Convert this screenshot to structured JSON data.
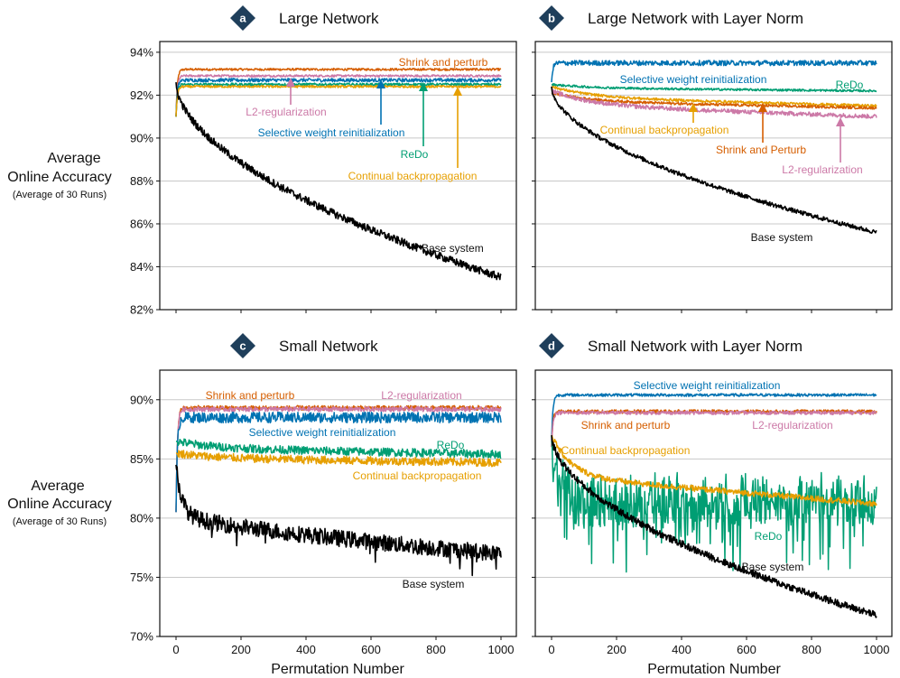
{
  "figure": {
    "ylabel_line1": "Average",
    "ylabel_line2": "Online Accuracy",
    "ylabel_line3": "(Average of 30 Runs)",
    "xlabel": "Permutation Number"
  },
  "colors": {
    "base": "#000000",
    "shrink": "#d55e00",
    "l2": "#cc79a7",
    "selective": "#0072b2",
    "redo": "#009e73",
    "cbp": "#e69f00",
    "badge": "#1f3f5b"
  },
  "chart_data": [
    {
      "id": "a",
      "badge": "a",
      "title": "Large Network",
      "type": "line",
      "xlim": [
        0,
        1000
      ],
      "ylim": [
        82,
        94.5
      ],
      "yticks": [
        82,
        84,
        86,
        88,
        90,
        92,
        94
      ],
      "ytick_labels": [
        "82%",
        "84%",
        "86%",
        "88%",
        "90%",
        "92%",
        "94%"
      ],
      "xticks": [
        0,
        200,
        400,
        600,
        800,
        1000
      ],
      "xtick_labels": [],
      "series": [
        {
          "name": "Shrink and perturb",
          "key": "shrink",
          "start": 91.0,
          "end": 93.2,
          "kind": "rise",
          "noise": 0.05
        },
        {
          "name": "L2-regularization",
          "key": "l2",
          "start": 91.0,
          "end": 92.9,
          "kind": "rise",
          "noise": 0.05
        },
        {
          "name": "Selective weight reinitialization",
          "key": "selective",
          "start": 91.0,
          "end": 92.7,
          "kind": "rise",
          "noise": 0.08
        },
        {
          "name": "ReDo",
          "key": "redo",
          "start": 91.0,
          "end": 92.5,
          "kind": "rise",
          "noise": 0.06
        },
        {
          "name": "Continual backpropagation",
          "key": "cbp",
          "start": 91.0,
          "end": 92.4,
          "kind": "rise",
          "noise": 0.05
        },
        {
          "name": "Base system",
          "key": "base",
          "start": 92.6,
          "end": 83.5,
          "kind": "decay",
          "noise": 0.18
        }
      ],
      "labels": {
        "shrink": "Shrink and perturb",
        "l2": "L2-regularization",
        "selective": "Selective weight reinitialization",
        "redo": "ReDo",
        "cbp": "Continual backpropagation",
        "base": "Base system"
      }
    },
    {
      "id": "b",
      "badge": "b",
      "title": "Large Network with Layer Norm",
      "type": "line",
      "xlim": [
        0,
        1000
      ],
      "ylim": [
        82,
        94.5
      ],
      "yticks": [
        82,
        84,
        86,
        88,
        90,
        92,
        94
      ],
      "ytick_labels": [],
      "xticks": [
        0,
        200,
        400,
        600,
        800,
        1000
      ],
      "xtick_labels": [],
      "series": [
        {
          "name": "Selective weight reinitialization",
          "key": "selective",
          "start": 92.6,
          "end": 93.5,
          "kind": "rise",
          "noise": 0.12
        },
        {
          "name": "ReDo",
          "key": "redo",
          "start": 92.5,
          "end": 92.2,
          "kind": "drift",
          "noise": 0.05
        },
        {
          "name": "Continual backpropagation",
          "key": "cbp",
          "start": 92.4,
          "end": 91.5,
          "kind": "drift",
          "noise": 0.06
        },
        {
          "name": "Shrink and Perturb",
          "key": "shrink",
          "start": 92.1,
          "end": 91.4,
          "kind": "drift",
          "noise": 0.06
        },
        {
          "name": "L2-regularization",
          "key": "l2",
          "start": 92.2,
          "end": 91.0,
          "kind": "drift",
          "noise": 0.1
        },
        {
          "name": "Base system",
          "key": "base",
          "start": 92.4,
          "end": 85.6,
          "kind": "decay",
          "noise": 0.1
        }
      ],
      "labels": {
        "selective": "Selective weight reinitialization",
        "redo": "ReDo",
        "cbp": "Continual backpropagation",
        "shrink": "Shrink and Perturb",
        "l2": "L2-regularization",
        "base": "Base system"
      }
    },
    {
      "id": "c",
      "badge": "c",
      "title": "Small Network",
      "type": "line",
      "xlim": [
        0,
        1000
      ],
      "ylim": [
        70,
        92.5
      ],
      "yticks": [
        70,
        75,
        80,
        85,
        90
      ],
      "ytick_labels": [
        "70%",
        "75%",
        "80%",
        "85%",
        "90%"
      ],
      "xticks": [
        0,
        200,
        400,
        600,
        800,
        1000
      ],
      "xtick_labels": [
        "0",
        "200",
        "400",
        "600",
        "800",
        "1000"
      ],
      "series": [
        {
          "name": "Shrink and perturb",
          "key": "shrink",
          "start": 80.5,
          "end": 89.3,
          "kind": "rise",
          "noise": 0.2
        },
        {
          "name": "L2-regularization",
          "key": "l2",
          "start": 80.5,
          "end": 89.2,
          "kind": "rise",
          "noise": 0.2
        },
        {
          "name": "Selective weight reinitialization",
          "key": "selective",
          "start": 80.5,
          "end": 88.5,
          "kind": "rise",
          "noise": 0.45
        },
        {
          "name": "ReDo",
          "key": "redo",
          "start": 86.5,
          "end": 85.4,
          "kind": "drift",
          "noise": 0.35
        },
        {
          "name": "Continual backpropagation",
          "key": "cbp",
          "start": 85.5,
          "end": 84.7,
          "kind": "drift",
          "noise": 0.35
        },
        {
          "name": "Base system",
          "key": "base",
          "start": 84.5,
          "end": 77.0,
          "kind": "smalldecay",
          "noise": 0.7
        }
      ],
      "labels": {
        "shrink": "Shrink and perturb",
        "l2": "L2-regularization",
        "selective": "Selective weight reinitialization",
        "redo": "ReDo",
        "cbp": "Continual backpropagation",
        "base": "Base system"
      }
    },
    {
      "id": "d",
      "badge": "d",
      "title": "Small Network with Layer Norm",
      "type": "line",
      "xlim": [
        0,
        1000
      ],
      "ylim": [
        70,
        92.5
      ],
      "yticks": [
        70,
        75,
        80,
        85,
        90
      ],
      "ytick_labels": [],
      "xticks": [
        0,
        200,
        400,
        600,
        800,
        1000
      ],
      "xtick_labels": [
        "0",
        "200",
        "400",
        "600",
        "800",
        "1000"
      ],
      "series": [
        {
          "name": "Selective weight reinitialization",
          "key": "selective",
          "start": 86.5,
          "end": 90.4,
          "kind": "rise",
          "noise": 0.12
        },
        {
          "name": "Shrink and perturb",
          "key": "shrink",
          "start": 86.0,
          "end": 89.0,
          "kind": "rise",
          "noise": 0.15
        },
        {
          "name": "L2-regularization",
          "key": "l2",
          "start": 86.0,
          "end": 88.9,
          "kind": "rise",
          "noise": 0.15
        },
        {
          "name": "ReDo",
          "key": "redo",
          "start": 86.5,
          "end": 81.5,
          "kind": "volatile",
          "noise": 1.8
        },
        {
          "name": "Continual backpropagation",
          "key": "cbp",
          "start": 87.0,
          "end": 81.2,
          "kind": "decay2",
          "noise": 0.25
        },
        {
          "name": "Base system",
          "key": "base",
          "start": 87.0,
          "end": 71.8,
          "kind": "decay",
          "noise": 0.3
        }
      ],
      "labels": {
        "selective": "Selective weight reinitialization",
        "shrink": "Shrink and perturb",
        "l2": "L2-regularization",
        "cbp": "Continual backpropagation",
        "redo": "ReDo",
        "base": "Base system"
      }
    }
  ]
}
